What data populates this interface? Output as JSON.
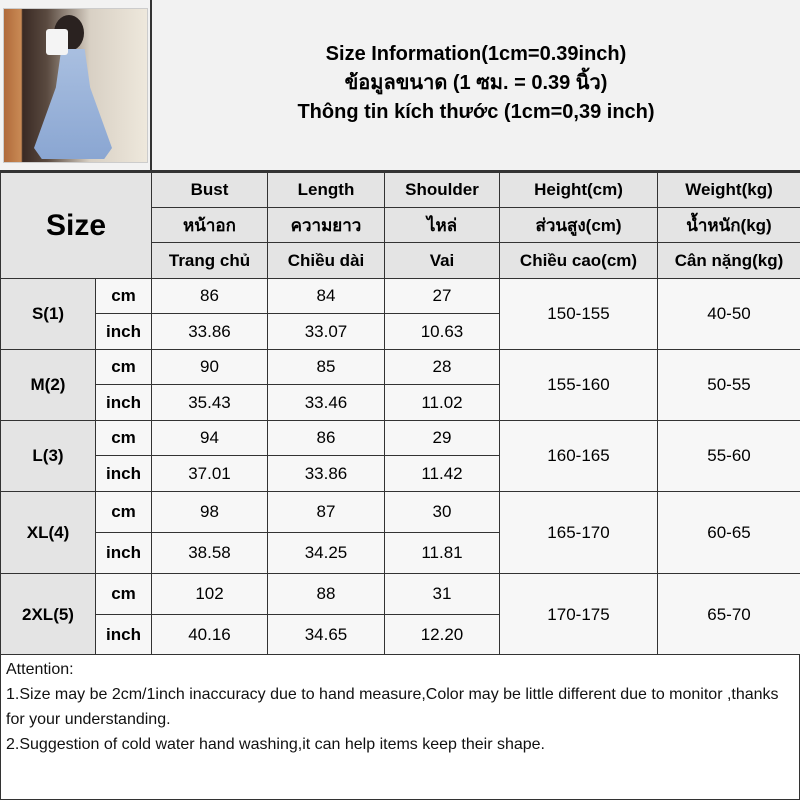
{
  "title": {
    "line1": "Size Information(1cm=0.39inch)",
    "line2": "ข้อมูลขนาด (1 ซม. = 0.39 นิ้ว)",
    "line3": "Thông tin kích thước (1cm=0,39 inch)"
  },
  "size_label": "Size",
  "headers": [
    {
      "en": "Bust",
      "th": "หน้าอก",
      "vi": "Trang chủ"
    },
    {
      "en": "Length",
      "th": "ความยาว",
      "vi": "Chiều dài"
    },
    {
      "en": "Shoulder",
      "th": "ไหล่",
      "vi": "Vai"
    },
    {
      "en": "Height(cm)",
      "th": "ส่วนสูง(cm)",
      "vi": "Chiều cao(cm)"
    },
    {
      "en": "Weight(kg)",
      "th": "น้ำหนัก(kg)",
      "vi": "Cân nặng(kg)"
    }
  ],
  "rows": [
    {
      "size": "S(1)",
      "cm_unit": "cm",
      "inch_unit": "inch",
      "cm": [
        "86",
        "84",
        "27"
      ],
      "inch": [
        "33.86",
        "33.07",
        "10.63"
      ],
      "height": "150-155",
      "weight": "40-50"
    },
    {
      "size": "M(2)",
      "cm_unit": "cm",
      "inch_unit": "inch",
      "cm": [
        "90",
        "85",
        "28"
      ],
      "inch": [
        "35.43",
        "33.46",
        "11.02"
      ],
      "height": "155-160",
      "weight": "50-55"
    },
    {
      "size": "L(3)",
      "cm_unit": "cm",
      "inch_unit": "inch",
      "cm": [
        "94",
        "86",
        "29"
      ],
      "inch": [
        "37.01",
        "33.86",
        "11.42"
      ],
      "height": "160-165",
      "weight": "55-60"
    },
    {
      "size": "XL(4)",
      "cm_unit": "cm",
      "inch_unit": "inch",
      "cm": [
        "98",
        "87",
        "30"
      ],
      "inch": [
        "38.58",
        "34.25",
        "11.81"
      ],
      "height": "165-170",
      "weight": "60-65"
    },
    {
      "size": "2XL(5)",
      "cm_unit": "cm",
      "inch_unit": "inch",
      "cm": [
        "102",
        "88",
        "31"
      ],
      "inch": [
        "40.16",
        "34.65",
        "12.20"
      ],
      "height": "170-175",
      "weight": "65-70"
    }
  ],
  "attention": {
    "heading": "Attention:",
    "line1": "1.Size may be 2cm/1inch inaccuracy due to hand measure,Color may be little different due to monitor ,thanks for your understanding.",
    "line2": "2.Suggestion of cold water hand washing,it can help items keep their shape."
  }
}
